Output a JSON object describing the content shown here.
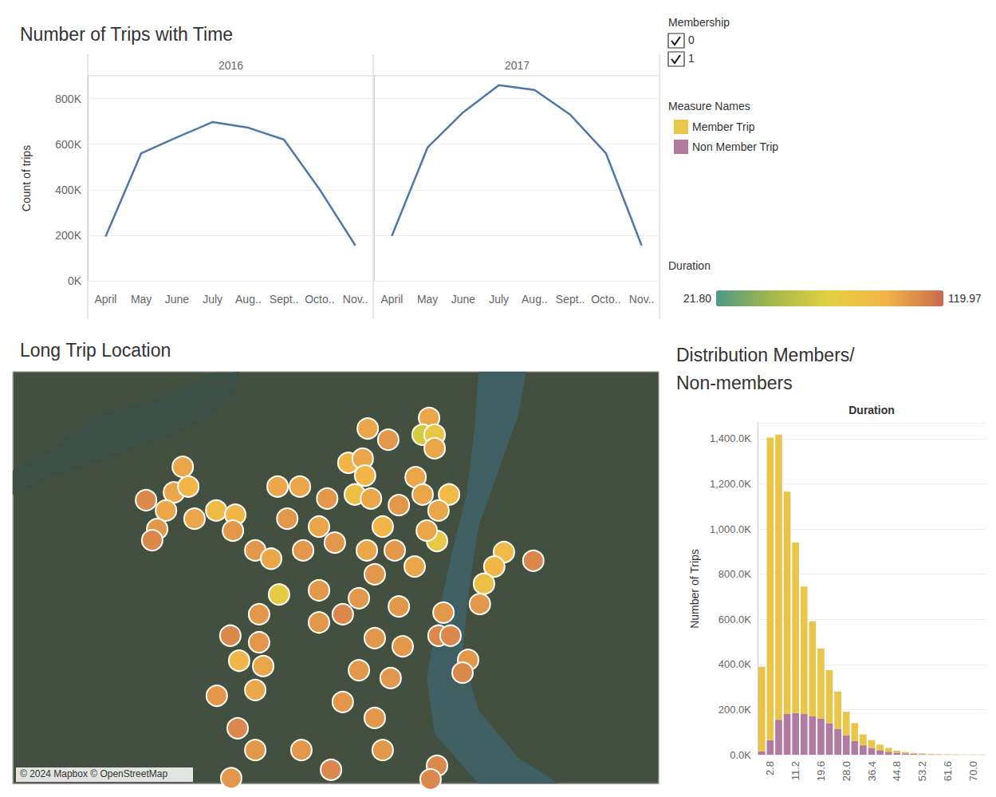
{
  "chart_data": [
    {
      "type": "line",
      "title": "Number of Trips with Time",
      "y_label": "Count of trips",
      "categories": [
        "April",
        "May",
        "June",
        "July",
        "Aug..",
        "Sept..",
        "Octo..",
        "Nov.."
      ],
      "series": [
        {
          "name": "2016",
          "color": "#4e79a7",
          "values": [
            194000,
            560000,
            630000,
            697000,
            672000,
            620000,
            401000,
            155000
          ]
        },
        {
          "name": "2017",
          "color": "#4e79a7",
          "values": [
            197000,
            585000,
            740000,
            859000,
            838000,
            729000,
            560000,
            155000
          ]
        }
      ],
      "ylim": [
        0,
        900000
      ],
      "yticks": [
        {
          "value": 0,
          "label": "0K"
        },
        {
          "value": 200000,
          "label": "200K"
        },
        {
          "value": 400000,
          "label": "400K"
        },
        {
          "value": 600000,
          "label": "600K"
        },
        {
          "value": 800000,
          "label": "800K"
        }
      ],
      "grid": true
    },
    {
      "type": "scatter",
      "title": "Long Trip Location",
      "x": [
        -73.5791,
        -73.5721,
        -73.5582,
        -73.5604,
        -73.5563,
        -73.5563,
        -73.5857,
        -73.5808,
        -73.58,
        -73.5628,
        -73.6421,
        -73.6546,
        -73.6451,
        -73.6402,
        -73.6478,
        -73.6508,
        -73.6525,
        -73.6307,
        -73.6242,
        -73.6381,
        -73.625,
        -73.6098,
        -73.6022,
        -73.5929,
        -73.5835,
        -73.578,
        -73.5685,
        -73.5604,
        -73.5514,
        -73.555,
        -73.5555,
        -73.559,
        -73.5327,
        -73.536,
        -73.5227,
        -73.5395,
        -73.5409,
        -73.5533,
        -73.555,
        -73.5509,
        -73.5449,
        -73.5468,
        -73.6174,
        -73.612,
        -73.6011,
        -73.5903,
        -73.5794,
        -73.5699,
        -73.5631,
        -73.6093,
        -73.5957,
        -73.5821,
        -73.5685,
        -73.6161,
        -73.5767,
        -73.5672,
        -73.6259,
        -73.6161,
        -73.6229,
        -73.6147,
        -73.6305,
        -73.6174,
        -73.6234,
        -73.5821,
        -73.5713,
        -73.5876,
        -73.5767,
        -73.574,
        -73.5916,
        -73.6174,
        -73.6017,
        -73.5555,
        -73.5577,
        -73.6256,
        -73.5957,
        -73.5876,
        -73.5767,
        -73.5957,
        -73.6065,
        -73.574
      ],
      "y": [
        45.5612,
        45.5585,
        45.5638,
        45.5597,
        45.5597,
        45.5564,
        45.5529,
        45.5539,
        45.5498,
        45.5494,
        45.5519,
        45.5438,
        45.5457,
        45.5471,
        45.5413,
        45.5368,
        45.5341,
        45.5413,
        45.5403,
        45.5393,
        45.5364,
        45.5471,
        45.5471,
        45.5442,
        45.5452,
        45.5442,
        45.5426,
        45.5452,
        45.5452,
        45.5413,
        45.5339,
        45.5364,
        45.5312,
        45.5277,
        45.5291,
        45.5235,
        45.5186,
        45.5165,
        45.5109,
        45.5109,
        45.505,
        45.5019,
        45.5316,
        45.5296,
        45.5316,
        45.5335,
        45.5316,
        45.5316,
        45.5277,
        45.5209,
        45.5219,
        45.52,
        45.518,
        45.5161,
        45.5103,
        45.5083,
        45.5109,
        45.5093,
        45.5048,
        45.5035,
        45.4963,
        45.4977,
        45.4884,
        45.5025,
        45.5006,
        45.4948,
        45.4909,
        45.4831,
        45.4783,
        45.4831,
        45.4831,
        45.4793,
        45.476,
        45.4763,
        45.5141,
        45.5161,
        45.5258,
        45.5374,
        45.5393,
        45.5374
      ],
      "duration": [
        100,
        105,
        100,
        65,
        80,
        100,
        95,
        100,
        95,
        100,
        100,
        110,
        100,
        95,
        100,
        105,
        110,
        90,
        95,
        100,
        105,
        100,
        100,
        105,
        85,
        100,
        105,
        100,
        90,
        100,
        80,
        100,
        90,
        95,
        110,
        85,
        105,
        105,
        110,
        110,
        105,
        110,
        105,
        100,
        105,
        105,
        100,
        105,
        100,
        75,
        105,
        105,
        105,
        105,
        105,
        105,
        110,
        105,
        95,
        100,
        105,
        100,
        110,
        105,
        105,
        105,
        105,
        105,
        110,
        105,
        105,
        110,
        110,
        105,
        105,
        110,
        105,
        100,
        105,
        95
      ],
      "xlim": [
        -73.7,
        -73.48
      ],
      "ylim": [
        45.475,
        45.575
      ],
      "tick_labels": false,
      "grid": false,
      "colorbar": {
        "title": "Duration",
        "range": [
          21.8,
          119.97
        ],
        "ticks": [
          {
            "value": 21.8,
            "label": "21.80"
          },
          {
            "value": 119.97,
            "label": "119.97"
          }
        ]
      },
      "attribution": "© 2024 Mapbox © OpenStreetMap"
    },
    {
      "type": "bar",
      "title": "Distribution Members/Non-members",
      "x_label": "Duration",
      "y_label": "Number of Trips",
      "categories": [
        null,
        "2.8",
        null,
        null,
        "11.2",
        null,
        null,
        "19.6",
        null,
        null,
        "28.0",
        null,
        null,
        "36.4",
        null,
        null,
        "44.8",
        null,
        null,
        "53.2",
        null,
        null,
        "61.6",
        null,
        null,
        "70.0",
        null
      ],
      "series": [
        {
          "name": "Member Trip",
          "color": "#e9c54a",
          "values": [
            375000,
            1340000,
            1263000,
            985000,
            755000,
            565000,
            420000,
            310000,
            235000,
            165000,
            105000,
            80000,
            48000,
            35000,
            25000,
            17000,
            9000,
            6000,
            4000,
            3500,
            2200,
            1800,
            1100,
            1400,
            600,
            700,
            800
          ]
        },
        {
          "name": "Non Member Trip",
          "color": "#b07aa1",
          "values": [
            15000,
            65000,
            155000,
            180000,
            185000,
            180000,
            170000,
            160000,
            140000,
            115000,
            85000,
            60000,
            42000,
            30000,
            20000,
            13000,
            9000,
            6000,
            4000,
            2500,
            1800,
            1200,
            900,
            600,
            400,
            300,
            200
          ]
        }
      ],
      "stacked": true,
      "ylim": [
        0,
        1470000
      ],
      "yticks": [
        {
          "value": 0,
          "label": "0.0K"
        },
        {
          "value": 200000,
          "label": "200.0K"
        },
        {
          "value": 400000,
          "label": "400.0K"
        },
        {
          "value": 600000,
          "label": "600.0K"
        },
        {
          "value": 800000,
          "label": "800.0K"
        },
        {
          "value": 1000000,
          "label": "1,000.0K"
        },
        {
          "value": 1200000,
          "label": "1,200.0K"
        },
        {
          "value": 1400000,
          "label": "1,400.0K"
        }
      ],
      "grid": true,
      "legend": "right",
      "legend_title": "Measure Names"
    }
  ],
  "filter": {
    "title": "Membership",
    "options": [
      "0",
      "1"
    ]
  }
}
